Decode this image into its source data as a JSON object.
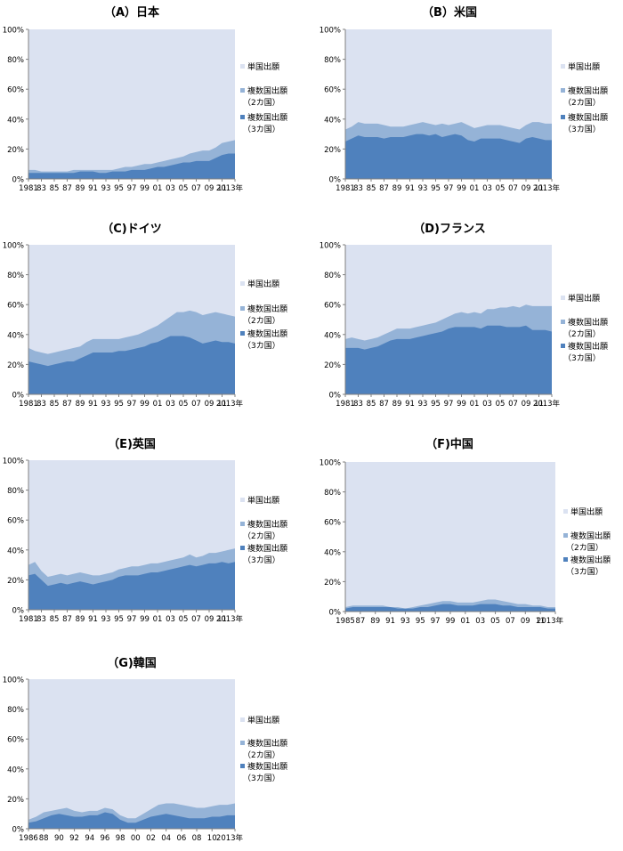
{
  "legend": {
    "single": "単国出願",
    "multi": "複数国出願",
    "two": "（2カ国）",
    "three": "（3カ国）"
  },
  "colors": {
    "single": "#dbe2f1",
    "two": "#95b3d7",
    "three": "#4f81bd"
  },
  "chart_data": [
    {
      "type": "area",
      "title": "（A）日本",
      "x": [
        1981,
        1982,
        1983,
        1984,
        1985,
        1986,
        1987,
        1988,
        1989,
        1990,
        1991,
        1992,
        1993,
        1994,
        1995,
        1996,
        1997,
        1998,
        1999,
        2000,
        2001,
        2002,
        2003,
        2004,
        2005,
        2006,
        2007,
        2008,
        2009,
        2010,
        2011,
        2012,
        2013
      ],
      "x_tick_labels": [
        "1981",
        "83",
        "85",
        "87",
        "89",
        "91",
        "93",
        "95",
        "97",
        "99",
        "01",
        "03",
        "05",
        "07",
        "09",
        "11",
        "2013年"
      ],
      "ylim": [
        0,
        100
      ],
      "y_ticks": [
        "0%",
        "20%",
        "40%",
        "60%",
        "80%",
        "100%"
      ],
      "series": [
        {
          "name": "複数国出願（3カ国）",
          "values": [
            4,
            4,
            4,
            4,
            4,
            4,
            4,
            4,
            5,
            5,
            5,
            4,
            4,
            5,
            5,
            5,
            6,
            6,
            6,
            7,
            8,
            8,
            9,
            10,
            11,
            11,
            12,
            12,
            12,
            14,
            16,
            17,
            17
          ]
        },
        {
          "name": "複数国出願（2カ国）",
          "values": [
            6,
            6,
            5,
            5,
            5,
            5,
            5,
            6,
            6,
            6,
            6,
            6,
            6,
            6,
            7,
            8,
            8,
            9,
            10,
            10,
            11,
            12,
            13,
            14,
            15,
            17,
            18,
            19,
            19,
            21,
            24,
            25,
            26
          ]
        },
        {
          "name": "単国出願",
          "values": [
            100,
            100,
            100,
            100,
            100,
            100,
            100,
            100,
            100,
            100,
            100,
            100,
            100,
            100,
            100,
            100,
            100,
            100,
            100,
            100,
            100,
            100,
            100,
            100,
            100,
            100,
            100,
            100,
            100,
            100,
            100,
            100,
            100
          ]
        }
      ]
    },
    {
      "type": "area",
      "title": "（B）米国",
      "x": [
        1981,
        1982,
        1983,
        1984,
        1985,
        1986,
        1987,
        1988,
        1989,
        1990,
        1991,
        1992,
        1993,
        1994,
        1995,
        1996,
        1997,
        1998,
        1999,
        2000,
        2001,
        2002,
        2003,
        2004,
        2005,
        2006,
        2007,
        2008,
        2009,
        2010,
        2011,
        2012,
        2013
      ],
      "x_tick_labels": [
        "1981",
        "83",
        "85",
        "87",
        "89",
        "91",
        "93",
        "95",
        "97",
        "99",
        "01",
        "03",
        "05",
        "07",
        "09",
        "11",
        "2013年"
      ],
      "ylim": [
        0,
        100
      ],
      "y_ticks": [
        "0%",
        "20%",
        "40%",
        "60%",
        "80%",
        "100%"
      ],
      "series": [
        {
          "name": "複数国出願（3カ国）",
          "values": [
            25,
            27,
            29,
            28,
            28,
            28,
            27,
            28,
            28,
            28,
            29,
            30,
            30,
            29,
            30,
            28,
            29,
            30,
            29,
            26,
            25,
            27,
            27,
            27,
            27,
            26,
            25,
            24,
            27,
            28,
            27,
            26,
            26
          ]
        },
        {
          "name": "複数国出願（2カ国）",
          "values": [
            33,
            35,
            38,
            37,
            37,
            37,
            36,
            35,
            35,
            35,
            36,
            37,
            38,
            37,
            36,
            37,
            36,
            37,
            38,
            36,
            34,
            35,
            36,
            36,
            36,
            35,
            34,
            33,
            36,
            38,
            38,
            37,
            37
          ]
        },
        {
          "name": "単国出願",
          "values": [
            100,
            100,
            100,
            100,
            100,
            100,
            100,
            100,
            100,
            100,
            100,
            100,
            100,
            100,
            100,
            100,
            100,
            100,
            100,
            100,
            100,
            100,
            100,
            100,
            100,
            100,
            100,
            100,
            100,
            100,
            100,
            100,
            100
          ]
        }
      ]
    },
    {
      "type": "area",
      "title": "（C)ドイツ",
      "x": [
        1981,
        1982,
        1983,
        1984,
        1985,
        1986,
        1987,
        1988,
        1989,
        1990,
        1991,
        1992,
        1993,
        1994,
        1995,
        1996,
        1997,
        1998,
        1999,
        2000,
        2001,
        2002,
        2003,
        2004,
        2005,
        2006,
        2007,
        2008,
        2009,
        2010,
        2011,
        2012,
        2013
      ],
      "x_tick_labels": [
        "1981",
        "83",
        "85",
        "87",
        "89",
        "91",
        "93",
        "95",
        "97",
        "99",
        "01",
        "03",
        "05",
        "07",
        "09",
        "11",
        "2013年"
      ],
      "ylim": [
        0,
        100
      ],
      "y_ticks": [
        "0%",
        "20%",
        "40%",
        "60%",
        "80%",
        "100%"
      ],
      "series": [
        {
          "name": "複数国出願（3カ国）",
          "values": [
            22,
            21,
            20,
            19,
            20,
            21,
            22,
            22,
            24,
            26,
            28,
            28,
            28,
            28,
            29,
            29,
            30,
            31,
            32,
            34,
            35,
            37,
            39,
            39,
            39,
            38,
            36,
            34,
            35,
            36,
            35,
            35,
            34
          ]
        },
        {
          "name": "複数国出願（2カ国）",
          "values": [
            31,
            29,
            28,
            27,
            28,
            29,
            30,
            31,
            32,
            35,
            37,
            37,
            37,
            37,
            37,
            38,
            39,
            40,
            42,
            44,
            46,
            49,
            52,
            55,
            55,
            56,
            55,
            53,
            54,
            55,
            54,
            53,
            52
          ]
        },
        {
          "name": "単国出願",
          "values": [
            100,
            100,
            100,
            100,
            100,
            100,
            100,
            100,
            100,
            100,
            100,
            100,
            100,
            100,
            100,
            100,
            100,
            100,
            100,
            100,
            100,
            100,
            100,
            100,
            100,
            100,
            100,
            100,
            100,
            100,
            100,
            100,
            100
          ]
        }
      ]
    },
    {
      "type": "area",
      "title": "（D)フランス",
      "x": [
        1981,
        1982,
        1983,
        1984,
        1985,
        1986,
        1987,
        1988,
        1989,
        1990,
        1991,
        1992,
        1993,
        1994,
        1995,
        1996,
        1997,
        1998,
        1999,
        2000,
        2001,
        2002,
        2003,
        2004,
        2005,
        2006,
        2007,
        2008,
        2009,
        2010,
        2011,
        2012,
        2013
      ],
      "x_tick_labels": [
        "1981",
        "83",
        "85",
        "87",
        "89",
        "91",
        "93",
        "95",
        "97",
        "99",
        "01",
        "03",
        "05",
        "07",
        "09",
        "11",
        "2013年"
      ],
      "ylim": [
        0,
        100
      ],
      "y_ticks": [
        "0%",
        "20%",
        "40%",
        "60%",
        "80%",
        "100%"
      ],
      "series": [
        {
          "name": "複数国出願（3カ国）",
          "values": [
            31,
            31,
            31,
            30,
            31,
            32,
            34,
            36,
            37,
            37,
            37,
            38,
            39,
            40,
            41,
            42,
            44,
            45,
            45,
            45,
            45,
            44,
            46,
            46,
            46,
            45,
            45,
            45,
            46,
            43,
            43,
            43,
            42
          ]
        },
        {
          "name": "複数国出願（2カ国）",
          "values": [
            37,
            38,
            37,
            36,
            37,
            38,
            40,
            42,
            44,
            44,
            44,
            45,
            46,
            47,
            48,
            50,
            52,
            54,
            55,
            54,
            55,
            54,
            57,
            57,
            58,
            58,
            59,
            58,
            60,
            59,
            59,
            59,
            59
          ]
        },
        {
          "name": "単国出願",
          "values": [
            100,
            100,
            100,
            100,
            100,
            100,
            100,
            100,
            100,
            100,
            100,
            100,
            100,
            100,
            100,
            100,
            100,
            100,
            100,
            100,
            100,
            100,
            100,
            100,
            100,
            100,
            100,
            100,
            100,
            100,
            100,
            100,
            100
          ]
        }
      ]
    },
    {
      "type": "area",
      "title": "（E)英国",
      "x": [
        1981,
        1982,
        1983,
        1984,
        1985,
        1986,
        1987,
        1988,
        1989,
        1990,
        1991,
        1992,
        1993,
        1994,
        1995,
        1996,
        1997,
        1998,
        1999,
        2000,
        2001,
        2002,
        2003,
        2004,
        2005,
        2006,
        2007,
        2008,
        2009,
        2010,
        2011,
        2012,
        2013
      ],
      "x_tick_labels": [
        "1981",
        "83",
        "85",
        "87",
        "89",
        "91",
        "93",
        "95",
        "97",
        "99",
        "01",
        "03",
        "05",
        "07",
        "09",
        "11",
        "2013年"
      ],
      "ylim": [
        0,
        100
      ],
      "y_ticks": [
        "0%",
        "20%",
        "40%",
        "60%",
        "80%",
        "100%"
      ],
      "series": [
        {
          "name": "複数国出願（3カ国）",
          "values": [
            23,
            24,
            20,
            16,
            17,
            18,
            17,
            18,
            19,
            18,
            17,
            18,
            19,
            20,
            22,
            23,
            23,
            23,
            24,
            25,
            25,
            26,
            27,
            28,
            29,
            30,
            29,
            30,
            31,
            31,
            32,
            31,
            32
          ]
        },
        {
          "name": "複数国出願（2カ国）",
          "values": [
            30,
            32,
            26,
            22,
            23,
            24,
            23,
            24,
            25,
            24,
            23,
            23,
            24,
            25,
            27,
            28,
            29,
            29,
            30,
            31,
            31,
            32,
            33,
            34,
            35,
            37,
            35,
            36,
            38,
            38,
            39,
            40,
            41
          ]
        },
        {
          "name": "単国出願",
          "values": [
            100,
            100,
            100,
            100,
            100,
            100,
            100,
            100,
            100,
            100,
            100,
            100,
            100,
            100,
            100,
            100,
            100,
            100,
            100,
            100,
            100,
            100,
            100,
            100,
            100,
            100,
            100,
            100,
            100,
            100,
            100,
            100,
            100
          ]
        }
      ]
    },
    {
      "type": "area",
      "title": "（F)中国",
      "x": [
        1985,
        1986,
        1987,
        1988,
        1989,
        1990,
        1991,
        1992,
        1993,
        1994,
        1995,
        1996,
        1997,
        1998,
        1999,
        2000,
        2001,
        2002,
        2003,
        2004,
        2005,
        2006,
        2007,
        2008,
        2009,
        2010,
        2011,
        2012,
        2013
      ],
      "x_tick_labels": [
        "1985",
        "87",
        "89",
        "91",
        "93",
        "95",
        "97",
        "99",
        "01",
        "03",
        "05",
        "07",
        "09",
        "11",
        "2013年"
      ],
      "ylim": [
        0,
        100
      ],
      "y_ticks": [
        "0%",
        "20%",
        "40%",
        "60%",
        "80%",
        "100%"
      ],
      "series": [
        {
          "name": "複数国出願（3カ国）",
          "values": [
            2,
            3,
            3,
            3,
            3,
            3,
            3,
            2,
            2,
            2,
            3,
            3,
            4,
            5,
            5,
            4,
            4,
            4,
            5,
            5,
            5,
            4,
            4,
            3,
            3,
            3,
            3,
            2,
            2
          ]
        },
        {
          "name": "複数国出願（2カ国）",
          "values": [
            3,
            4,
            4,
            4,
            4,
            4,
            3,
            3,
            2,
            3,
            4,
            5,
            6,
            7,
            7,
            6,
            6,
            6,
            7,
            8,
            8,
            7,
            6,
            5,
            5,
            4,
            4,
            3,
            3
          ]
        },
        {
          "name": "単国出願",
          "values": [
            100,
            100,
            100,
            100,
            100,
            100,
            100,
            100,
            100,
            100,
            100,
            100,
            100,
            100,
            100,
            100,
            100,
            100,
            100,
            100,
            100,
            100,
            100,
            100,
            100,
            100,
            100,
            100,
            100
          ]
        }
      ]
    },
    {
      "type": "area",
      "title": "（G)韓国",
      "x": [
        1986,
        1987,
        1988,
        1989,
        1990,
        1991,
        1992,
        1993,
        1994,
        1995,
        1996,
        1997,
        1998,
        1999,
        2000,
        2001,
        2002,
        2003,
        2004,
        2005,
        2006,
        2007,
        2008,
        2009,
        2010,
        2011,
        2012,
        2013
      ],
      "x_tick_labels": [
        "1986",
        "88",
        "90",
        "92",
        "94",
        "96",
        "98",
        "00",
        "02",
        "04",
        "06",
        "08",
        "10",
        "2013年"
      ],
      "ylim": [
        0,
        100
      ],
      "y_ticks": [
        "0%",
        "20%",
        "40%",
        "60%",
        "80%",
        "100%"
      ],
      "series": [
        {
          "name": "複数国出願（3カ国）",
          "values": [
            4,
            5,
            7,
            9,
            10,
            9,
            8,
            8,
            9,
            9,
            11,
            10,
            6,
            4,
            4,
            6,
            8,
            9,
            10,
            9,
            8,
            7,
            7,
            7,
            8,
            8,
            9,
            9
          ]
        },
        {
          "name": "複数国出願（2カ国）",
          "values": [
            6,
            8,
            11,
            12,
            13,
            14,
            12,
            11,
            12,
            12,
            14,
            13,
            9,
            7,
            7,
            10,
            13,
            16,
            17,
            17,
            16,
            15,
            14,
            14,
            15,
            16,
            16,
            17
          ]
        },
        {
          "name": "単国出願",
          "values": [
            100,
            100,
            100,
            100,
            100,
            100,
            100,
            100,
            100,
            100,
            100,
            100,
            100,
            100,
            100,
            100,
            100,
            100,
            100,
            100,
            100,
            100,
            100,
            100,
            100,
            100,
            100,
            100
          ]
        }
      ]
    }
  ]
}
